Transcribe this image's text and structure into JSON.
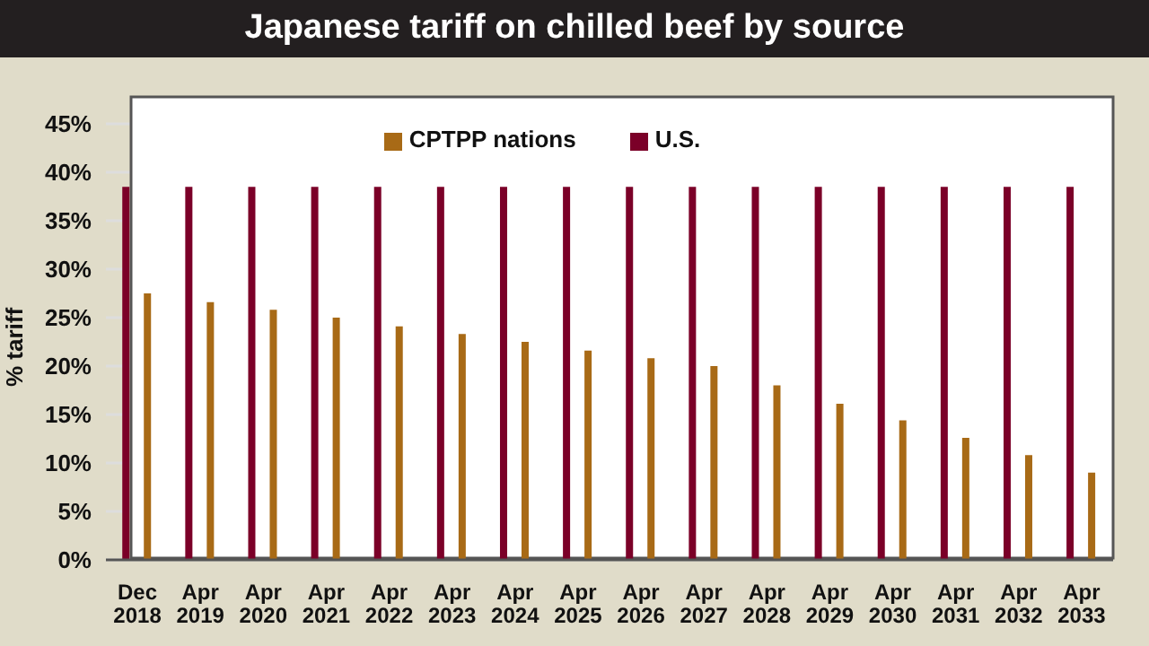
{
  "chart_data": {
    "type": "bar",
    "title": "Japanese tariff on chilled beef by source",
    "ylabel": "% tariff",
    "categories": [
      "Dec 2018",
      "Apr 2019",
      "Apr 2020",
      "Apr 2021",
      "Apr 2022",
      "Apr 2023",
      "Apr 2024",
      "Apr 2025",
      "Apr 2026",
      "Apr 2027",
      "Apr 2028",
      "Apr 2029",
      "Apr 2030",
      "Apr 2031",
      "Apr 2032",
      "Apr 2033"
    ],
    "series": [
      {
        "name": "U.S.",
        "color": "#7b0028",
        "values": [
          38.5,
          38.5,
          38.5,
          38.5,
          38.5,
          38.5,
          38.5,
          38.5,
          38.5,
          38.5,
          38.5,
          38.5,
          38.5,
          38.5,
          38.5,
          38.5
        ]
      },
      {
        "name": "CPTPP nations",
        "color": "#a86a16",
        "values": [
          27.5,
          26.6,
          25.8,
          25.0,
          24.1,
          23.3,
          22.5,
          21.6,
          20.8,
          20.0,
          18.0,
          16.1,
          14.4,
          12.6,
          10.8,
          9.0
        ]
      }
    ],
    "ylim": [
      0,
      45
    ],
    "yticks": [
      {
        "value": 0,
        "label": "0%"
      },
      {
        "value": 5,
        "label": "5%"
      },
      {
        "value": 10,
        "label": "10%"
      },
      {
        "value": 15,
        "label": "15%"
      },
      {
        "value": 20,
        "label": "20%"
      },
      {
        "value": 25,
        "label": "25%"
      },
      {
        "value": 30,
        "label": "30%"
      },
      {
        "value": 35,
        "label": "35%"
      },
      {
        "value": 40,
        "label": "40%"
      },
      {
        "value": 45,
        "label": "45%"
      }
    ],
    "grid": "y",
    "legend": "top"
  }
}
